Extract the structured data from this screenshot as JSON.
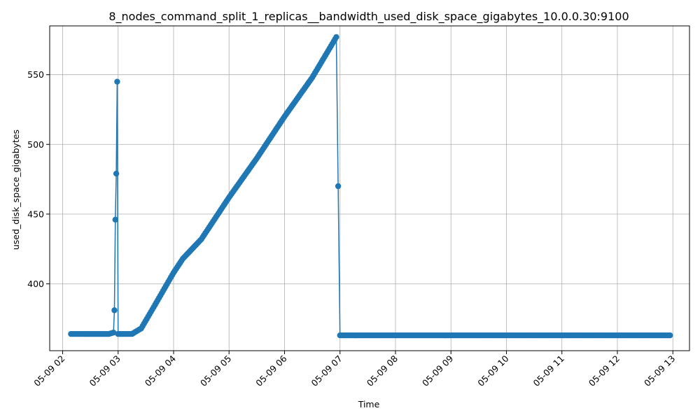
{
  "chart_data": {
    "type": "line",
    "title": "8_nodes_command_split_1_replicas__bandwidth_used_disk_space_gigabytes_10.0.0.30:9100",
    "xlabel": "Time",
    "ylabel": "used_disk_space_gigabytes",
    "xlim": [
      "2025-05-09 01:46",
      "2025-05-09 13:18"
    ],
    "ylim": [
      352,
      585
    ],
    "x_tick_labels": [
      "05-09 02",
      "05-09 03",
      "05-09 04",
      "05-09 05",
      "05-09 06",
      "05-09 07",
      "05-09 08",
      "05-09 09",
      "05-09 10",
      "05-09 11",
      "05-09 12",
      "05-09 13"
    ],
    "y_ticks": [
      400,
      450,
      500,
      550
    ],
    "grid": true,
    "marker": "circle",
    "line_color": "#1f77b4",
    "series": [
      {
        "points": [
          [
            "2025-05-09 02:09",
            364
          ],
          [
            "2025-05-09 02:20",
            364
          ],
          [
            "2025-05-09 02:30",
            364
          ],
          [
            "2025-05-09 02:40",
            364
          ],
          [
            "2025-05-09 02:50",
            364
          ],
          [
            "2025-05-09 02:55",
            365
          ],
          [
            "2025-05-09 02:56",
            381
          ],
          [
            "2025-05-09 02:57",
            446
          ],
          [
            "2025-05-09 02:58",
            479
          ],
          [
            "2025-05-09 02:59",
            545
          ],
          [
            "2025-05-09 03:00",
            364
          ],
          [
            "2025-05-09 03:10",
            364
          ],
          [
            "2025-05-09 03:15",
            364
          ],
          [
            "2025-05-09 03:25",
            368
          ],
          [
            "2025-05-09 03:40",
            385
          ],
          [
            "2025-05-09 04:00",
            408
          ],
          [
            "2025-05-09 04:10",
            418
          ],
          [
            "2025-05-09 04:30",
            432
          ],
          [
            "2025-05-09 05:00",
            462
          ],
          [
            "2025-05-09 05:30",
            490
          ],
          [
            "2025-05-09 06:00",
            520
          ],
          [
            "2025-05-09 06:30",
            548
          ],
          [
            "2025-05-09 06:56",
            577
          ],
          [
            "2025-05-09 07:00",
            363
          ],
          [
            "2025-05-09 08:00",
            363
          ],
          [
            "2025-05-09 09:00",
            363
          ],
          [
            "2025-05-09 10:00",
            363
          ],
          [
            "2025-05-09 11:00",
            363
          ],
          [
            "2025-05-09 12:00",
            363
          ],
          [
            "2025-05-09 12:57",
            363
          ]
        ]
      }
    ]
  }
}
